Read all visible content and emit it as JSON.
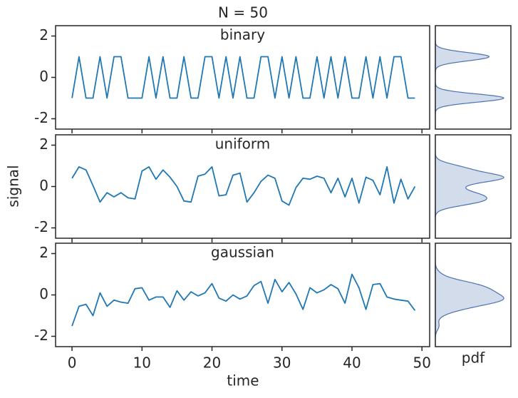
{
  "chart_data": {
    "type": "line",
    "title": "N = 50",
    "xlabel": "time",
    "ylabel": "signal",
    "marginal_xlabel": "pdf",
    "color": "#1f77b4",
    "marginal_color": "#4c72b0",
    "x": [
      0,
      1,
      2,
      3,
      4,
      5,
      6,
      7,
      8,
      9,
      10,
      11,
      12,
      13,
      14,
      15,
      16,
      17,
      18,
      19,
      20,
      21,
      22,
      23,
      24,
      25,
      26,
      27,
      28,
      29,
      30,
      31,
      32,
      33,
      34,
      35,
      36,
      37,
      38,
      39,
      40,
      41,
      42,
      43,
      44,
      45,
      46,
      47,
      48,
      49
    ],
    "xlim": [
      -2.35,
      51.1
    ],
    "xticks": [
      0,
      10,
      20,
      30,
      40,
      50
    ],
    "ylim": [
      -2.5,
      2.5
    ],
    "yticks": [
      -2,
      0,
      2
    ],
    "panels": [
      {
        "title": "binary",
        "values": [
          -1,
          1,
          -1,
          -1,
          1,
          -1,
          1,
          1,
          -1,
          -1,
          -1,
          1,
          -1,
          1,
          -1,
          -1,
          1,
          -1,
          -1,
          1,
          1,
          -1,
          1,
          -1,
          1,
          -1,
          -1,
          1,
          1,
          -1,
          1,
          -1,
          1,
          -1,
          -1,
          1,
          -1,
          1,
          -1,
          1,
          -1,
          -1,
          1,
          -1,
          1,
          -1,
          1,
          1,
          -1,
          -1
        ]
      },
      {
        "title": "uniform",
        "values": [
          0.4,
          0.95,
          0.8,
          0.05,
          -0.75,
          -0.3,
          -0.5,
          -0.3,
          -0.55,
          -0.6,
          0.75,
          0.95,
          0.35,
          0.8,
          0.45,
          0,
          -0.7,
          -0.75,
          0.5,
          0.6,
          0.95,
          -0.45,
          -0.4,
          0.55,
          0.65,
          -0.75,
          -0.3,
          0.25,
          0.55,
          0.4,
          -0.7,
          -0.9,
          -0.05,
          0.4,
          0.35,
          0.5,
          0.4,
          -0.3,
          0.4,
          -0.5,
          0.4,
          -0.8,
          0.45,
          0.3,
          -0.4,
          0.95,
          -0.8,
          0.35,
          -0.6,
          0
        ]
      },
      {
        "title": "gaussian",
        "values": [
          -1.5,
          -0.55,
          -0.45,
          -1,
          0.1,
          -0.55,
          -0.25,
          -0.35,
          -0.4,
          0.3,
          0.35,
          -0.25,
          -0.1,
          -0.1,
          -0.6,
          0.2,
          -0.25,
          0.15,
          -0.05,
          0.1,
          0.55,
          -0.15,
          -0.3,
          0,
          -0.2,
          -0.05,
          0.45,
          0.65,
          -0.4,
          0.75,
          0.15,
          0.6,
          0.05,
          -0.7,
          0.35,
          0.1,
          0.25,
          0.5,
          0.3,
          -0.4,
          1,
          0.35,
          -0.7,
          0.5,
          0.55,
          -0.1,
          -0.2,
          -0.25,
          -0.3,
          -0.75
        ]
      }
    ]
  }
}
